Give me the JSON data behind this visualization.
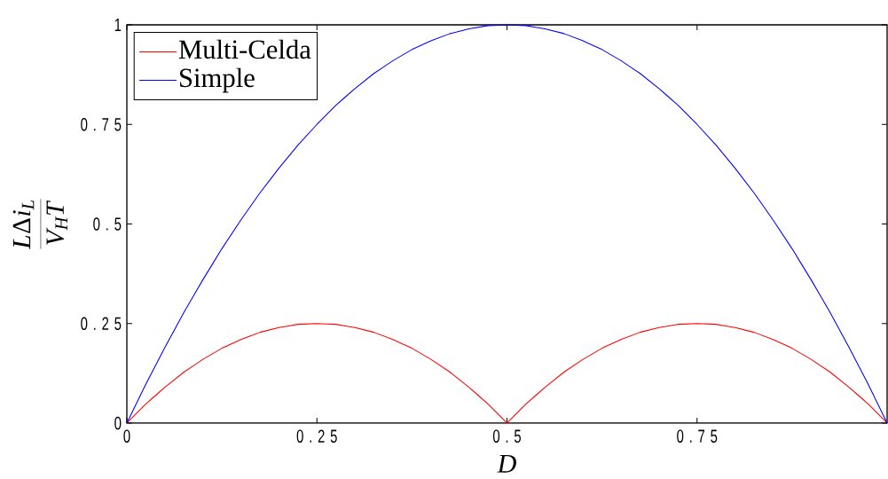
{
  "chart_data": {
    "type": "line",
    "xlabel": "D",
    "ylabel": "\\frac{L\\Delta i_L}{V_HT}",
    "x": [
      0,
      0.0125,
      0.025,
      0.0375,
      0.05,
      0.0625,
      0.075,
      0.0875,
      0.1,
      0.1125,
      0.125,
      0.1375,
      0.15,
      0.1625,
      0.175,
      0.1875,
      0.2,
      0.2125,
      0.225,
      0.2375,
      0.25,
      0.2625,
      0.275,
      0.2875,
      0.3,
      0.3125,
      0.325,
      0.3375,
      0.35,
      0.3625,
      0.375,
      0.3875,
      0.4,
      0.4125,
      0.425,
      0.4375,
      0.45,
      0.4625,
      0.475,
      0.4875,
      0.5,
      0.5125,
      0.525,
      0.5375,
      0.55,
      0.5625,
      0.575,
      0.5875,
      0.6,
      0.6125,
      0.625,
      0.6375,
      0.65,
      0.6625,
      0.675,
      0.6875,
      0.7,
      0.7125,
      0.725,
      0.7375,
      0.75,
      0.7625,
      0.775,
      0.7875,
      0.8,
      0.8125,
      0.825,
      0.8375,
      0.85,
      0.8625,
      0.875,
      0.8875,
      0.9,
      0.9125,
      0.925,
      0.9375,
      0.95,
      0.9625,
      0.975,
      0.9875,
      1
    ],
    "series": [
      {
        "name": "Multi-Celda",
        "color": "#ff0000",
        "values": [
          0,
          0.024,
          0.048,
          0.069,
          0.09,
          0.109,
          0.128,
          0.144,
          0.16,
          0.174,
          0.188,
          0.199,
          0.21,
          0.219,
          0.228,
          0.234,
          0.24,
          0.244,
          0.248,
          0.249,
          0.25,
          0.249,
          0.248,
          0.244,
          0.24,
          0.234,
          0.228,
          0.219,
          0.21,
          0.199,
          0.188,
          0.174,
          0.16,
          0.144,
          0.128,
          0.109,
          0.09,
          0.069,
          0.048,
          0.024,
          0,
          0.024,
          0.048,
          0.069,
          0.09,
          0.109,
          0.128,
          0.144,
          0.16,
          0.174,
          0.188,
          0.199,
          0.21,
          0.219,
          0.228,
          0.234,
          0.24,
          0.244,
          0.248,
          0.249,
          0.25,
          0.249,
          0.248,
          0.244,
          0.24,
          0.234,
          0.228,
          0.219,
          0.21,
          0.199,
          0.188,
          0.174,
          0.16,
          0.144,
          0.128,
          0.109,
          0.09,
          0.069,
          0.048,
          0.024,
          0
        ]
      },
      {
        "name": "Simple",
        "color": "#0000ff",
        "values": [
          0,
          0.049,
          0.098,
          0.144,
          0.19,
          0.234,
          0.278,
          0.319,
          0.36,
          0.399,
          0.438,
          0.474,
          0.51,
          0.544,
          0.578,
          0.609,
          0.64,
          0.669,
          0.698,
          0.724,
          0.75,
          0.774,
          0.798,
          0.819,
          0.84,
          0.859,
          0.878,
          0.894,
          0.91,
          0.924,
          0.938,
          0.949,
          0.96,
          0.969,
          0.978,
          0.984,
          0.99,
          0.994,
          0.998,
          0.999,
          1,
          0.999,
          0.998,
          0.994,
          0.99,
          0.984,
          0.978,
          0.969,
          0.96,
          0.949,
          0.938,
          0.924,
          0.91,
          0.894,
          0.878,
          0.859,
          0.84,
          0.819,
          0.798,
          0.774,
          0.75,
          0.724,
          0.698,
          0.669,
          0.64,
          0.609,
          0.578,
          0.544,
          0.51,
          0.474,
          0.438,
          0.399,
          0.36,
          0.319,
          0.278,
          0.234,
          0.19,
          0.144,
          0.098,
          0.049,
          0
        ]
      }
    ],
    "xlim": [
      0,
      1
    ],
    "ylim": [
      0,
      1
    ],
    "xticks": [
      0,
      0.25,
      0.5,
      0.75
    ],
    "yticks": [
      0,
      0.25,
      0.5,
      0.75,
      1
    ],
    "legend": "top left"
  }
}
